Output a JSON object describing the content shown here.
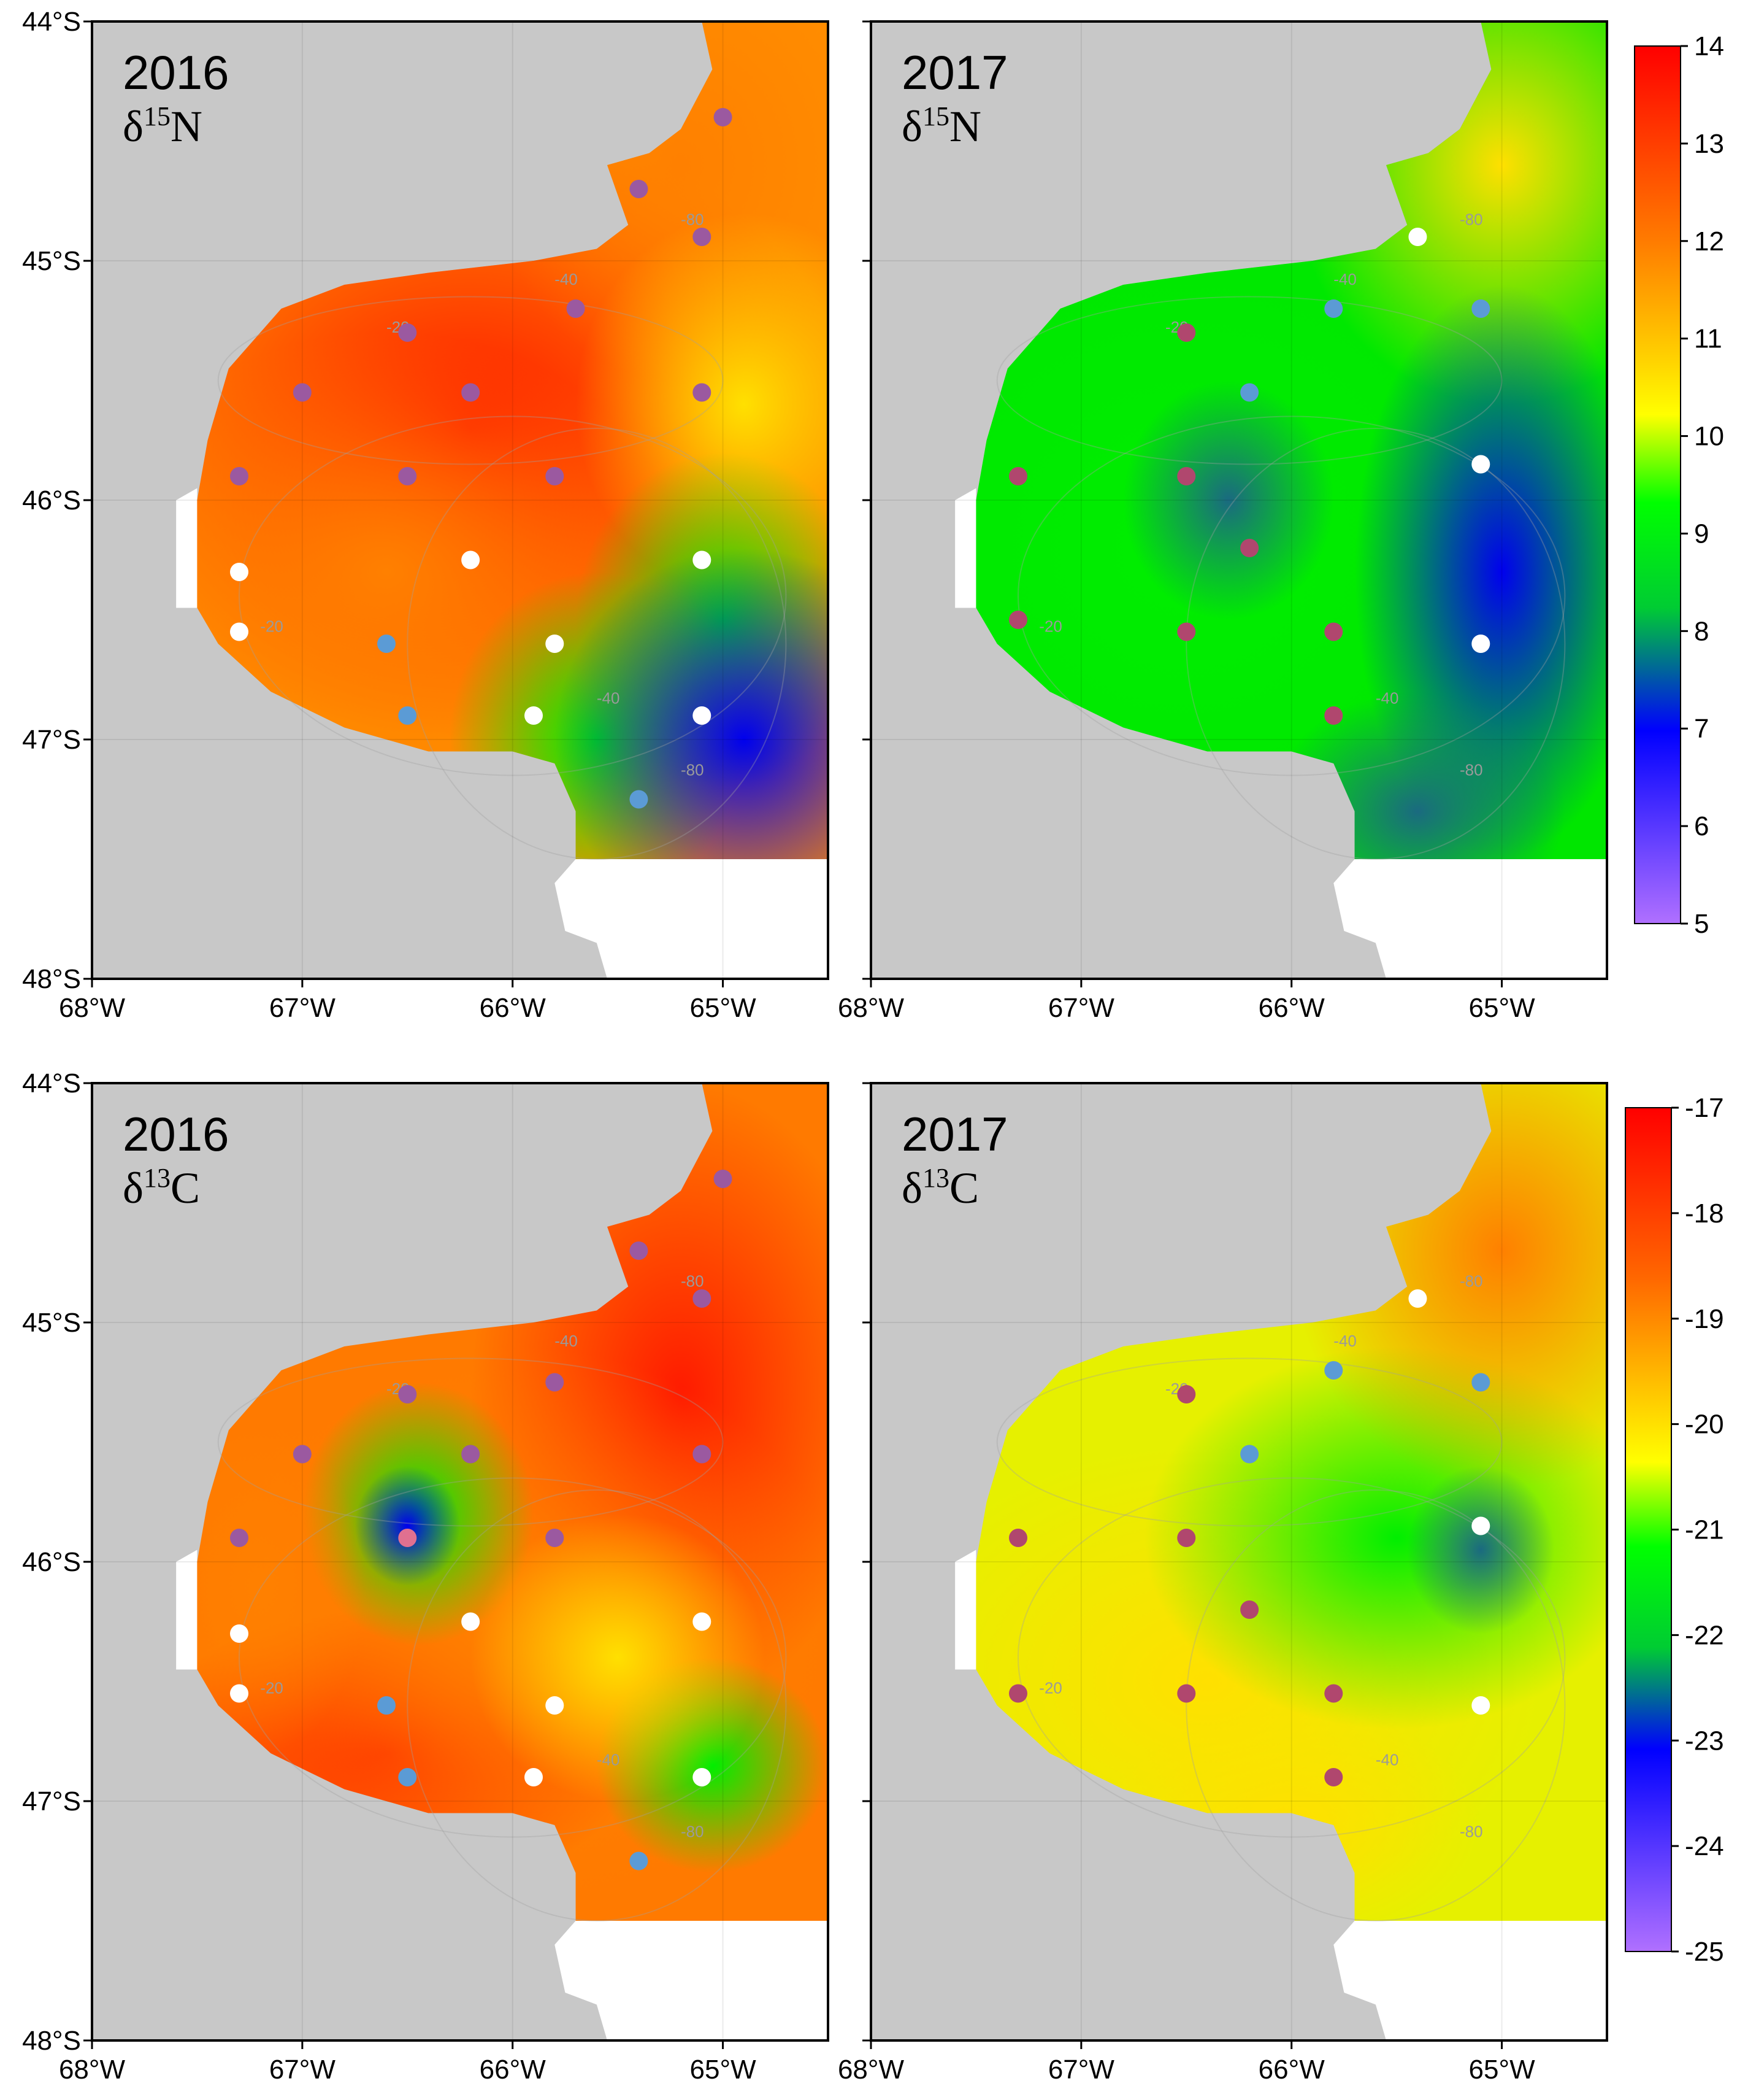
{
  "colors": {
    "land": "#c8c8c8",
    "sea_background": "#ffffff",
    "frame": "#000000",
    "station_purple": "#9b59a0",
    "station_magenta": "#b0476e",
    "station_blue": "#5b9bd5",
    "station_white": "#ffffff",
    "colorbar_stops": [
      "#ff0000",
      "#ff6600",
      "#ffcc00",
      "#ffff00",
      "#00ff00",
      "#00cc33",
      "#0000ff",
      "#b070ff"
    ]
  },
  "axes": {
    "lon_ticks": [
      "68°W",
      "67°W",
      "66°W",
      "65°W"
    ],
    "lat_ticks": [
      "44°S",
      "45°S",
      "46°S",
      "47°S",
      "48°S"
    ]
  },
  "colorbars": [
    {
      "name": "d15N",
      "ticks": [
        "14",
        "13",
        "12",
        "11",
        "10",
        "9",
        "8",
        "7",
        "6",
        "5"
      ]
    },
    {
      "name": "d13C",
      "ticks": [
        "-17",
        "-18",
        "-19",
        "-20",
        "-21",
        "-22",
        "-23",
        "-24",
        "-25"
      ]
    }
  ],
  "panels": [
    {
      "year": "2016",
      "isotope_sym": "δ",
      "isotope_sup": "15",
      "isotope_el": "N"
    },
    {
      "year": "2017",
      "isotope_sym": "δ",
      "isotope_sup": "15",
      "isotope_el": "N"
    },
    {
      "year": "2016",
      "isotope_sym": "δ",
      "isotope_sup": "13",
      "isotope_el": "C"
    },
    {
      "year": "2017",
      "isotope_sym": "δ",
      "isotope_sup": "13",
      "isotope_el": "C"
    }
  ],
  "contour_labels": [
    "-20",
    "-40",
    "-80"
  ],
  "chart_data": [
    {
      "type": "heatmap",
      "title": "2016 δ15N",
      "colorbar_range": [
        5,
        14
      ],
      "stations": [
        {
          "lon": -65.0,
          "lat": -44.4,
          "class": "purple"
        },
        {
          "lon": -65.4,
          "lat": -44.7,
          "class": "purple"
        },
        {
          "lon": -65.1,
          "lat": -44.9,
          "class": "purple"
        },
        {
          "lon": -65.7,
          "lat": -45.2,
          "class": "purple"
        },
        {
          "lon": -66.5,
          "lat": -45.3,
          "class": "purple"
        },
        {
          "lon": -67.0,
          "lat": -45.55,
          "class": "purple"
        },
        {
          "lon": -66.2,
          "lat": -45.55,
          "class": "purple"
        },
        {
          "lon": -65.1,
          "lat": -45.55,
          "class": "purple"
        },
        {
          "lon": -67.3,
          "lat": -45.9,
          "class": "purple"
        },
        {
          "lon": -66.5,
          "lat": -45.9,
          "class": "purple"
        },
        {
          "lon": -65.8,
          "lat": -45.9,
          "class": "purple"
        },
        {
          "lon": -67.3,
          "lat": -46.3,
          "class": "white"
        },
        {
          "lon": -66.2,
          "lat": -46.25,
          "class": "white"
        },
        {
          "lon": -65.1,
          "lat": -46.25,
          "class": "white"
        },
        {
          "lon": -67.3,
          "lat": -46.55,
          "class": "white"
        },
        {
          "lon": -66.6,
          "lat": -46.6,
          "class": "blue"
        },
        {
          "lon": -65.8,
          "lat": -46.6,
          "class": "white"
        },
        {
          "lon": -66.5,
          "lat": -46.9,
          "class": "blue"
        },
        {
          "lon": -65.9,
          "lat": -46.9,
          "class": "white"
        },
        {
          "lon": -65.1,
          "lat": -46.9,
          "class": "white"
        },
        {
          "lon": -65.4,
          "lat": -47.25,
          "class": "blue"
        }
      ]
    },
    {
      "type": "heatmap",
      "title": "2017 δ15N",
      "colorbar_range": [
        5,
        14
      ],
      "stations": [
        {
          "lon": -65.4,
          "lat": -44.9,
          "class": "white"
        },
        {
          "lon": -66.5,
          "lat": -45.3,
          "class": "magenta"
        },
        {
          "lon": -65.8,
          "lat": -45.2,
          "class": "blue"
        },
        {
          "lon": -65.1,
          "lat": -45.2,
          "class": "blue"
        },
        {
          "lon": -66.2,
          "lat": -45.55,
          "class": "blue"
        },
        {
          "lon": -67.3,
          "lat": -45.9,
          "class": "magenta"
        },
        {
          "lon": -66.5,
          "lat": -45.9,
          "class": "magenta"
        },
        {
          "lon": -65.1,
          "lat": -45.85,
          "class": "white"
        },
        {
          "lon": -66.2,
          "lat": -46.2,
          "class": "magenta"
        },
        {
          "lon": -67.3,
          "lat": -46.5,
          "class": "magenta"
        },
        {
          "lon": -66.5,
          "lat": -46.55,
          "class": "magenta"
        },
        {
          "lon": -65.8,
          "lat": -46.55,
          "class": "magenta"
        },
        {
          "lon": -65.1,
          "lat": -46.6,
          "class": "white"
        },
        {
          "lon": -65.8,
          "lat": -46.9,
          "class": "magenta"
        }
      ]
    },
    {
      "type": "heatmap",
      "title": "2016 δ13C",
      "colorbar_range": [
        -25,
        -17
      ],
      "stations": [
        {
          "lon": -65.0,
          "lat": -44.4,
          "class": "purple"
        },
        {
          "lon": -65.4,
          "lat": -44.7,
          "class": "purple"
        },
        {
          "lon": -65.1,
          "lat": -44.9,
          "class": "purple"
        },
        {
          "lon": -65.8,
          "lat": -45.25,
          "class": "purple"
        },
        {
          "lon": -66.5,
          "lat": -45.3,
          "class": "purple"
        },
        {
          "lon": -67.0,
          "lat": -45.55,
          "class": "purple"
        },
        {
          "lon": -66.2,
          "lat": -45.55,
          "class": "purple"
        },
        {
          "lon": -65.1,
          "lat": -45.55,
          "class": "purple"
        },
        {
          "lon": -67.3,
          "lat": -45.9,
          "class": "purple"
        },
        {
          "lon": -66.5,
          "lat": -45.9,
          "class": "pink"
        },
        {
          "lon": -65.8,
          "lat": -45.9,
          "class": "purple"
        },
        {
          "lon": -67.3,
          "lat": -46.3,
          "class": "white"
        },
        {
          "lon": -66.2,
          "lat": -46.25,
          "class": "white"
        },
        {
          "lon": -65.1,
          "lat": -46.25,
          "class": "white"
        },
        {
          "lon": -67.3,
          "lat": -46.55,
          "class": "white"
        },
        {
          "lon": -66.6,
          "lat": -46.6,
          "class": "blue"
        },
        {
          "lon": -65.8,
          "lat": -46.6,
          "class": "white"
        },
        {
          "lon": -66.5,
          "lat": -46.9,
          "class": "blue"
        },
        {
          "lon": -65.9,
          "lat": -46.9,
          "class": "white"
        },
        {
          "lon": -65.1,
          "lat": -46.9,
          "class": "white"
        },
        {
          "lon": -65.4,
          "lat": -47.25,
          "class": "blue"
        }
      ]
    },
    {
      "type": "heatmap",
      "title": "2017 δ13C",
      "colorbar_range": [
        -25,
        -17
      ],
      "stations": [
        {
          "lon": -65.4,
          "lat": -44.9,
          "class": "white"
        },
        {
          "lon": -66.5,
          "lat": -45.3,
          "class": "magenta"
        },
        {
          "lon": -65.8,
          "lat": -45.2,
          "class": "blue"
        },
        {
          "lon": -65.1,
          "lat": -45.25,
          "class": "blue"
        },
        {
          "lon": -66.2,
          "lat": -45.55,
          "class": "blue"
        },
        {
          "lon": -67.3,
          "lat": -45.9,
          "class": "magenta"
        },
        {
          "lon": -66.5,
          "lat": -45.9,
          "class": "magenta"
        },
        {
          "lon": -65.1,
          "lat": -45.85,
          "class": "white"
        },
        {
          "lon": -66.2,
          "lat": -46.2,
          "class": "magenta"
        },
        {
          "lon": -67.3,
          "lat": -46.55,
          "class": "magenta"
        },
        {
          "lon": -66.5,
          "lat": -46.55,
          "class": "magenta"
        },
        {
          "lon": -65.8,
          "lat": -46.55,
          "class": "magenta"
        },
        {
          "lon": -65.1,
          "lat": -46.6,
          "class": "white"
        },
        {
          "lon": -65.8,
          "lat": -46.9,
          "class": "magenta"
        }
      ]
    }
  ]
}
